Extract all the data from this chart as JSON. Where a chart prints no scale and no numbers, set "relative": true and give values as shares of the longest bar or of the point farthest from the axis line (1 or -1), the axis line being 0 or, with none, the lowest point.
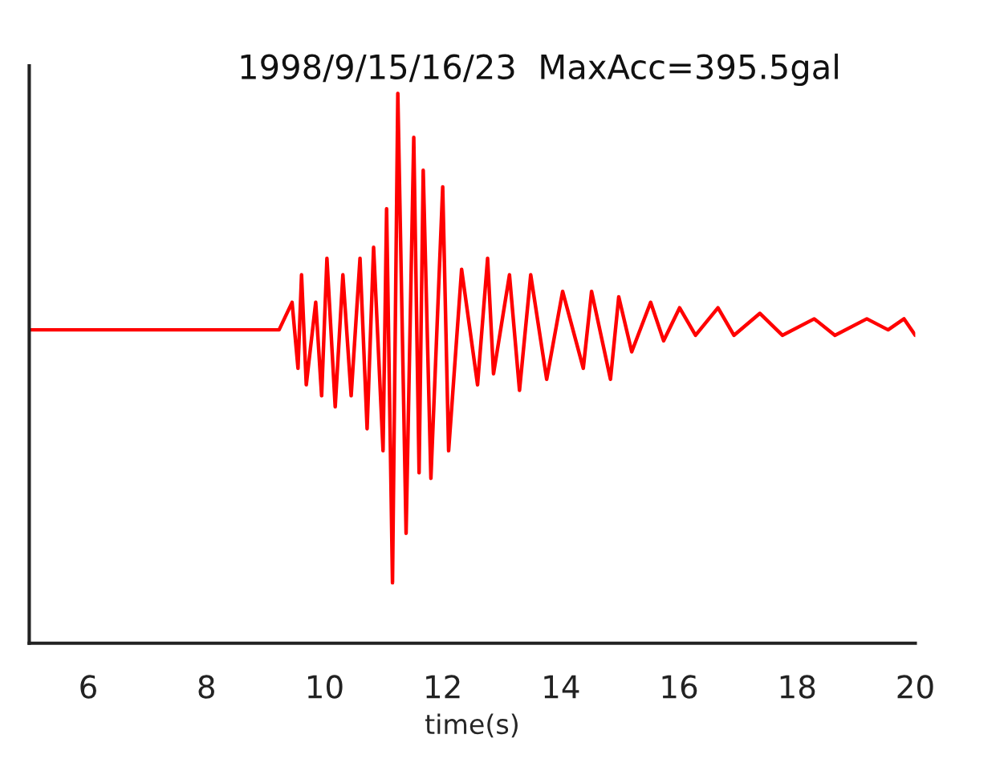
{
  "chart_data": {
    "type": "line",
    "title": "1998/9/15/16/23  MaxAcc=395.5gal",
    "xlabel": "time(s)",
    "relative": true,
    "xlim": [
      5,
      20
    ],
    "xticks": [
      6,
      8,
      10,
      12,
      14,
      16,
      18,
      20
    ],
    "tick_labels": "x",
    "grid": false,
    "legend": false,
    "series": [
      {
        "color": "#ff0000",
        "x": [
          5.0,
          9.23,
          9.45,
          9.55,
          9.61,
          9.69,
          9.85,
          9.95,
          10.04,
          10.18,
          10.31,
          10.45,
          10.6,
          10.72,
          10.83,
          10.99,
          11.05,
          11.15,
          11.24,
          11.38,
          11.51,
          11.6,
          11.67,
          11.8,
          12.0,
          12.1,
          12.32,
          12.59,
          12.76,
          12.86,
          13.13,
          13.3,
          13.49,
          13.76,
          14.03,
          14.38,
          14.52,
          14.84,
          14.98,
          15.2,
          15.52,
          15.74,
          16.01,
          16.28,
          16.66,
          16.93,
          17.37,
          17.75,
          18.29,
          18.64,
          19.18,
          19.54,
          19.81,
          20.0
        ],
        "values": [
          0.57,
          0.57,
          0.62,
          0.5,
          0.67,
          0.47,
          0.62,
          0.45,
          0.7,
          0.43,
          0.67,
          0.45,
          0.7,
          0.39,
          0.72,
          0.35,
          0.79,
          0.11,
          1.0,
          0.2,
          0.92,
          0.31,
          0.86,
          0.3,
          0.83,
          0.35,
          0.68,
          0.47,
          0.7,
          0.49,
          0.67,
          0.46,
          0.67,
          0.48,
          0.64,
          0.5,
          0.64,
          0.48,
          0.63,
          0.53,
          0.62,
          0.55,
          0.61,
          0.56,
          0.61,
          0.56,
          0.6,
          0.56,
          0.59,
          0.56,
          0.59,
          0.57,
          0.59,
          0.56
        ]
      }
    ]
  }
}
